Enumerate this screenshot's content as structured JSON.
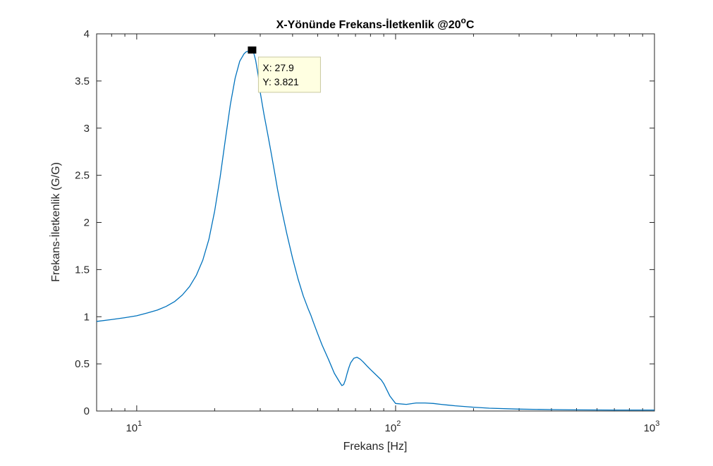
{
  "chart_data": {
    "type": "line",
    "title_main": "X-Yönünde Frekans-İletkenlik @20",
    "title_sup": "o",
    "title_tail": "C",
    "xlabel": "Frekans [Hz]",
    "ylabel": "Frekans-İletkenlik (G/G)",
    "xscale": "log",
    "xlim": [
      7,
      1000
    ],
    "ylim": [
      0,
      4
    ],
    "xticks": [
      {
        "base": "10",
        "exp": "1",
        "value": 10
      },
      {
        "base": "10",
        "exp": "2",
        "value": 100
      },
      {
        "base": "10",
        "exp": "3",
        "value": 1000
      }
    ],
    "yticks": [
      {
        "label": "0",
        "value": 0
      },
      {
        "label": "0.5",
        "value": 0.5
      },
      {
        "label": "1",
        "value": 1
      },
      {
        "label": "1.5",
        "value": 1.5
      },
      {
        "label": "2",
        "value": 2
      },
      {
        "label": "2.5",
        "value": 2.5
      },
      {
        "label": "3",
        "value": 3
      },
      {
        "label": "3.5",
        "value": 3.5
      },
      {
        "label": "4",
        "value": 4
      }
    ],
    "grid": false,
    "line_color": "#0072bd",
    "series": [
      {
        "x": [
          7,
          8,
          9,
          10,
          11,
          12,
          13,
          14,
          15,
          16,
          17,
          18,
          19,
          20,
          21,
          22,
          23,
          24,
          25,
          26,
          26.5,
          27,
          27.5,
          27.9,
          28.3,
          28.8,
          29.5,
          30,
          31,
          32,
          33,
          34,
          35,
          36,
          38,
          40,
          42,
          44,
          46,
          47,
          48,
          50,
          52,
          55,
          58,
          61,
          62,
          63,
          64,
          65,
          66,
          67,
          69,
          71,
          73,
          75,
          78,
          80,
          85,
          88,
          90,
          95,
          100,
          110,
          120,
          130,
          140,
          150,
          170,
          200,
          230,
          300,
          400,
          500,
          700,
          1000
        ],
        "y": [
          0.95,
          0.97,
          0.99,
          1.01,
          1.04,
          1.07,
          1.11,
          1.16,
          1.23,
          1.32,
          1.44,
          1.6,
          1.82,
          2.12,
          2.48,
          2.88,
          3.25,
          3.53,
          3.71,
          3.79,
          3.81,
          3.815,
          3.818,
          3.821,
          3.8,
          3.72,
          3.55,
          3.38,
          3.15,
          2.95,
          2.75,
          2.55,
          2.35,
          2.18,
          1.88,
          1.62,
          1.4,
          1.22,
          1.08,
          1.02,
          0.95,
          0.82,
          0.7,
          0.55,
          0.4,
          0.3,
          0.27,
          0.28,
          0.33,
          0.4,
          0.46,
          0.51,
          0.56,
          0.57,
          0.55,
          0.52,
          0.47,
          0.44,
          0.37,
          0.33,
          0.29,
          0.16,
          0.08,
          0.07,
          0.085,
          0.085,
          0.08,
          0.07,
          0.055,
          0.04,
          0.03,
          0.02,
          0.015,
          0.012,
          0.01,
          0.01
        ]
      }
    ],
    "datatip": {
      "x": 27.9,
      "y": 3.821,
      "x_text": "X: 27.9",
      "y_text": "Y: 3.821"
    }
  }
}
